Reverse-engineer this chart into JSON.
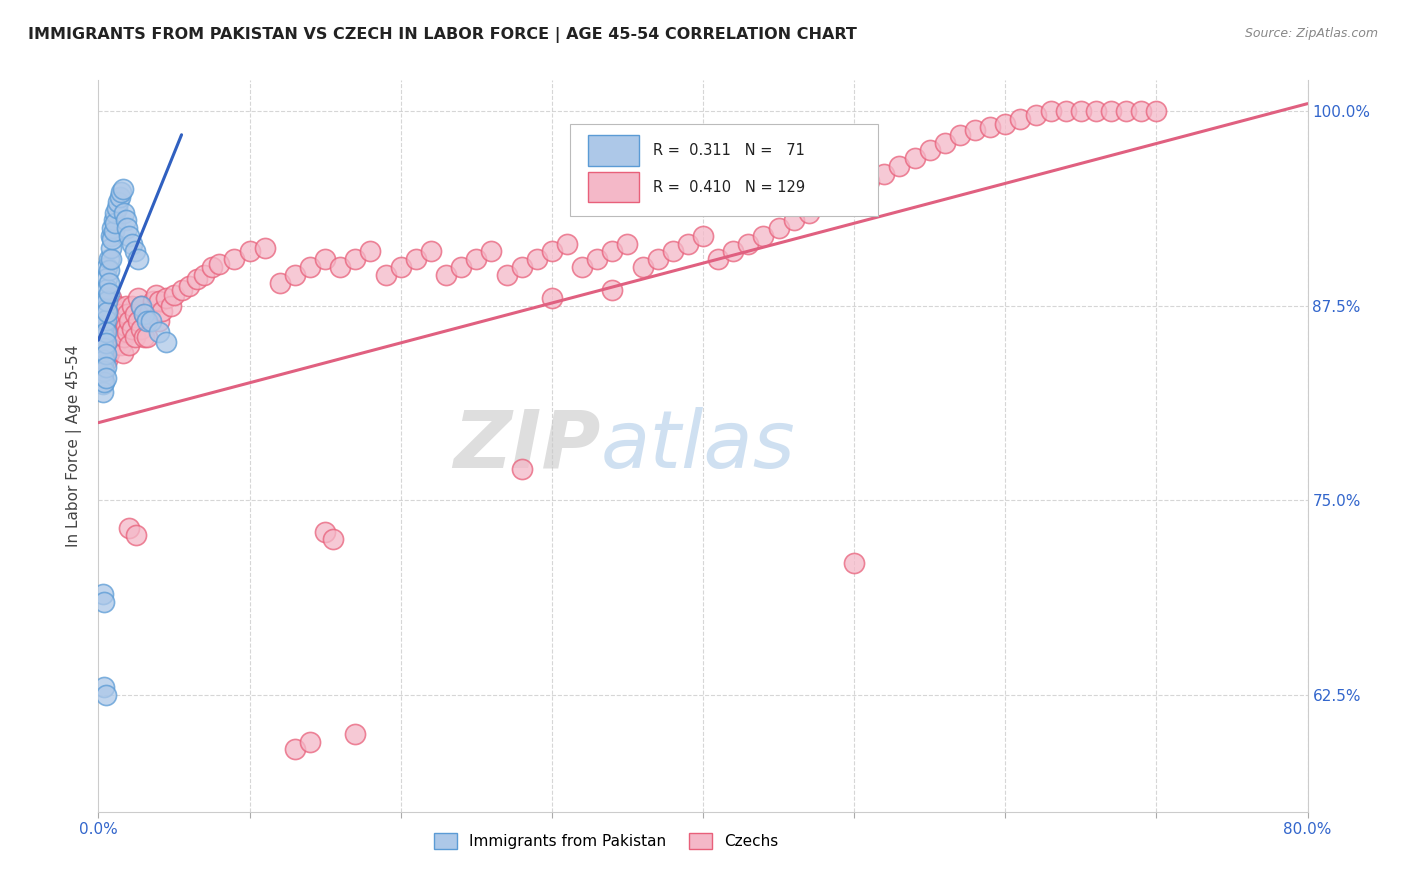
{
  "title": "IMMIGRANTS FROM PAKISTAN VS CZECH IN LABOR FORCE | AGE 45-54 CORRELATION CHART",
  "source": "Source: ZipAtlas.com",
  "ylabel": "In Labor Force | Age 45-54",
  "x_min": 0.0,
  "x_max": 0.8,
  "y_min": 0.55,
  "y_max": 1.02,
  "x_ticks": [
    0.0,
    0.1,
    0.2,
    0.3,
    0.4,
    0.5,
    0.6,
    0.7,
    0.8
  ],
  "x_tick_labels": [
    "0.0%",
    "",
    "",
    "",
    "",
    "",
    "",
    "",
    "80.0%"
  ],
  "y_ticks": [
    0.625,
    0.75,
    0.875,
    1.0
  ],
  "y_tick_labels": [
    "62.5%",
    "75.0%",
    "87.5%",
    "100.0%"
  ],
  "pakistan_color": "#adc8e8",
  "pakistan_edge": "#5b9bd5",
  "czech_color": "#f4b8c8",
  "czech_edge": "#e8607a",
  "trendline_pakistan_color": "#3060c0",
  "trendline_czech_color": "#e06080",
  "watermark_zip": "ZIP",
  "watermark_atlas": "atlas",
  "pakistan_points": [
    [
      0.002,
      0.87
    ],
    [
      0.002,
      0.86
    ],
    [
      0.002,
      0.855
    ],
    [
      0.002,
      0.848
    ],
    [
      0.002,
      0.843
    ],
    [
      0.002,
      0.838
    ],
    [
      0.003,
      0.865
    ],
    [
      0.003,
      0.858
    ],
    [
      0.003,
      0.85
    ],
    [
      0.003,
      0.845
    ],
    [
      0.003,
      0.84
    ],
    [
      0.003,
      0.835
    ],
    [
      0.003,
      0.83
    ],
    [
      0.003,
      0.825
    ],
    [
      0.003,
      0.82
    ],
    [
      0.004,
      0.877
    ],
    [
      0.004,
      0.87
    ],
    [
      0.004,
      0.863
    ],
    [
      0.004,
      0.855
    ],
    [
      0.004,
      0.848
    ],
    [
      0.004,
      0.84
    ],
    [
      0.004,
      0.833
    ],
    [
      0.004,
      0.826
    ],
    [
      0.005,
      0.88
    ],
    [
      0.005,
      0.873
    ],
    [
      0.005,
      0.866
    ],
    [
      0.005,
      0.858
    ],
    [
      0.005,
      0.851
    ],
    [
      0.005,
      0.844
    ],
    [
      0.005,
      0.836
    ],
    [
      0.005,
      0.829
    ],
    [
      0.006,
      0.9
    ],
    [
      0.006,
      0.893
    ],
    [
      0.006,
      0.886
    ],
    [
      0.006,
      0.878
    ],
    [
      0.006,
      0.871
    ],
    [
      0.007,
      0.905
    ],
    [
      0.007,
      0.898
    ],
    [
      0.007,
      0.89
    ],
    [
      0.007,
      0.883
    ],
    [
      0.008,
      0.92
    ],
    [
      0.008,
      0.912
    ],
    [
      0.008,
      0.905
    ],
    [
      0.009,
      0.925
    ],
    [
      0.009,
      0.918
    ],
    [
      0.01,
      0.93
    ],
    [
      0.01,
      0.923
    ],
    [
      0.011,
      0.935
    ],
    [
      0.011,
      0.928
    ],
    [
      0.012,
      0.938
    ],
    [
      0.013,
      0.942
    ],
    [
      0.014,
      0.945
    ],
    [
      0.015,
      0.948
    ],
    [
      0.016,
      0.95
    ],
    [
      0.017,
      0.935
    ],
    [
      0.018,
      0.93
    ],
    [
      0.019,
      0.925
    ],
    [
      0.02,
      0.92
    ],
    [
      0.022,
      0.915
    ],
    [
      0.024,
      0.91
    ],
    [
      0.026,
      0.905
    ],
    [
      0.028,
      0.875
    ],
    [
      0.03,
      0.87
    ],
    [
      0.032,
      0.865
    ],
    [
      0.035,
      0.865
    ],
    [
      0.04,
      0.858
    ],
    [
      0.045,
      0.852
    ],
    [
      0.003,
      0.69
    ],
    [
      0.004,
      0.685
    ],
    [
      0.004,
      0.63
    ],
    [
      0.005,
      0.625
    ]
  ],
  "czech_points": [
    [
      0.002,
      0.855
    ],
    [
      0.003,
      0.86
    ],
    [
      0.003,
      0.848
    ],
    [
      0.004,
      0.865
    ],
    [
      0.004,
      0.85
    ],
    [
      0.004,
      0.84
    ],
    [
      0.005,
      0.858
    ],
    [
      0.005,
      0.845
    ],
    [
      0.006,
      0.87
    ],
    [
      0.006,
      0.855
    ],
    [
      0.006,
      0.84
    ],
    [
      0.007,
      0.875
    ],
    [
      0.007,
      0.86
    ],
    [
      0.007,
      0.845
    ],
    [
      0.008,
      0.88
    ],
    [
      0.008,
      0.865
    ],
    [
      0.009,
      0.875
    ],
    [
      0.009,
      0.86
    ],
    [
      0.01,
      0.87
    ],
    [
      0.01,
      0.855
    ],
    [
      0.011,
      0.865
    ],
    [
      0.011,
      0.85
    ],
    [
      0.012,
      0.875
    ],
    [
      0.012,
      0.862
    ],
    [
      0.013,
      0.87
    ],
    [
      0.013,
      0.858
    ],
    [
      0.014,
      0.865
    ],
    [
      0.014,
      0.855
    ],
    [
      0.015,
      0.862
    ],
    [
      0.015,
      0.85
    ],
    [
      0.016,
      0.858
    ],
    [
      0.016,
      0.845
    ],
    [
      0.017,
      0.865
    ],
    [
      0.017,
      0.855
    ],
    [
      0.018,
      0.875
    ],
    [
      0.018,
      0.862
    ],
    [
      0.019,
      0.87
    ],
    [
      0.019,
      0.858
    ],
    [
      0.02,
      0.865
    ],
    [
      0.02,
      0.85
    ],
    [
      0.022,
      0.875
    ],
    [
      0.022,
      0.86
    ],
    [
      0.024,
      0.87
    ],
    [
      0.024,
      0.855
    ],
    [
      0.026,
      0.88
    ],
    [
      0.026,
      0.865
    ],
    [
      0.028,
      0.875
    ],
    [
      0.028,
      0.86
    ],
    [
      0.03,
      0.87
    ],
    [
      0.03,
      0.855
    ],
    [
      0.032,
      0.868
    ],
    [
      0.032,
      0.855
    ],
    [
      0.034,
      0.872
    ],
    [
      0.036,
      0.878
    ],
    [
      0.038,
      0.882
    ],
    [
      0.04,
      0.878
    ],
    [
      0.04,
      0.865
    ],
    [
      0.042,
      0.872
    ],
    [
      0.045,
      0.88
    ],
    [
      0.048,
      0.875
    ],
    [
      0.05,
      0.882
    ],
    [
      0.055,
      0.885
    ],
    [
      0.06,
      0.888
    ],
    [
      0.065,
      0.892
    ],
    [
      0.07,
      0.895
    ],
    [
      0.075,
      0.9
    ],
    [
      0.08,
      0.902
    ],
    [
      0.09,
      0.905
    ],
    [
      0.1,
      0.91
    ],
    [
      0.11,
      0.912
    ],
    [
      0.12,
      0.89
    ],
    [
      0.13,
      0.895
    ],
    [
      0.14,
      0.9
    ],
    [
      0.15,
      0.905
    ],
    [
      0.16,
      0.9
    ],
    [
      0.17,
      0.905
    ],
    [
      0.18,
      0.91
    ],
    [
      0.19,
      0.895
    ],
    [
      0.2,
      0.9
    ],
    [
      0.21,
      0.905
    ],
    [
      0.22,
      0.91
    ],
    [
      0.23,
      0.895
    ],
    [
      0.24,
      0.9
    ],
    [
      0.25,
      0.905
    ],
    [
      0.26,
      0.91
    ],
    [
      0.27,
      0.895
    ],
    [
      0.28,
      0.9
    ],
    [
      0.29,
      0.905
    ],
    [
      0.3,
      0.91
    ],
    [
      0.31,
      0.915
    ],
    [
      0.32,
      0.9
    ],
    [
      0.33,
      0.905
    ],
    [
      0.34,
      0.91
    ],
    [
      0.35,
      0.915
    ],
    [
      0.36,
      0.9
    ],
    [
      0.37,
      0.905
    ],
    [
      0.38,
      0.91
    ],
    [
      0.39,
      0.915
    ],
    [
      0.4,
      0.92
    ],
    [
      0.41,
      0.905
    ],
    [
      0.42,
      0.91
    ],
    [
      0.43,
      0.915
    ],
    [
      0.44,
      0.92
    ],
    [
      0.45,
      0.925
    ],
    [
      0.46,
      0.93
    ],
    [
      0.47,
      0.935
    ],
    [
      0.48,
      0.94
    ],
    [
      0.49,
      0.945
    ],
    [
      0.5,
      0.95
    ],
    [
      0.51,
      0.955
    ],
    [
      0.52,
      0.96
    ],
    [
      0.53,
      0.965
    ],
    [
      0.54,
      0.97
    ],
    [
      0.55,
      0.975
    ],
    [
      0.56,
      0.98
    ],
    [
      0.57,
      0.985
    ],
    [
      0.58,
      0.988
    ],
    [
      0.59,
      0.99
    ],
    [
      0.6,
      0.992
    ],
    [
      0.61,
      0.995
    ],
    [
      0.62,
      0.998
    ],
    [
      0.63,
      1.0
    ],
    [
      0.64,
      1.0
    ],
    [
      0.65,
      1.0
    ],
    [
      0.66,
      1.0
    ],
    [
      0.67,
      1.0
    ],
    [
      0.68,
      1.0
    ],
    [
      0.69,
      1.0
    ],
    [
      0.7,
      1.0
    ],
    [
      0.02,
      0.732
    ],
    [
      0.025,
      0.728
    ],
    [
      0.15,
      0.73
    ],
    [
      0.155,
      0.725
    ],
    [
      0.3,
      0.88
    ],
    [
      0.34,
      0.885
    ],
    [
      0.28,
      0.77
    ],
    [
      0.5,
      0.71
    ],
    [
      0.13,
      0.59
    ],
    [
      0.14,
      0.595
    ],
    [
      0.17,
      0.6
    ]
  ],
  "pak_trendline": [
    [
      0.0,
      0.853
    ],
    [
      0.055,
      0.985
    ]
  ],
  "czech_trendline": [
    [
      0.0,
      0.8
    ],
    [
      0.8,
      1.005
    ]
  ]
}
